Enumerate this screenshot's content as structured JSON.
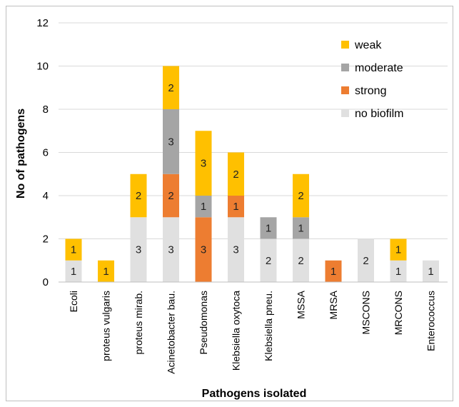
{
  "chart_data": {
    "type": "bar",
    "stacked": true,
    "categories": [
      "Ecoli",
      "proteus vulgaris",
      "proteus mirab.",
      "Acinetobacter bau.",
      "Pseudomonas",
      "Klebsiella oxytoca",
      "Klebsiella pneu.",
      "MSSA",
      "MRSA",
      "MSCONS",
      "MRCONS",
      "Enterococcus"
    ],
    "series": [
      {
        "name": "no biofilm",
        "color": "#e0e0e0",
        "values": [
          1,
          0,
          3,
          3,
          0,
          3,
          2,
          2,
          0,
          2,
          1,
          1
        ]
      },
      {
        "name": "strong",
        "color": "#ed7d31",
        "values": [
          0,
          0,
          0,
          2,
          3,
          1,
          0,
          0,
          1,
          0,
          0,
          0
        ]
      },
      {
        "name": "moderate",
        "color": "#a5a5a5",
        "values": [
          0,
          0,
          0,
          3,
          1,
          0,
          1,
          1,
          0,
          0,
          0,
          0
        ]
      },
      {
        "name": "weak",
        "color": "#ffc000",
        "values": [
          1,
          1,
          2,
          2,
          3,
          2,
          0,
          2,
          0,
          0,
          1,
          0
        ]
      }
    ],
    "legend_order": [
      "weak",
      "moderate",
      "strong",
      "no biofilm"
    ],
    "legend_position": "top-right",
    "xlabel": "Pathogens isolated",
    "ylabel": "No of pathogens",
    "ylim": [
      0,
      12
    ],
    "yticks": [
      0,
      2,
      4,
      6,
      8,
      10,
      12
    ],
    "grid": true
  }
}
